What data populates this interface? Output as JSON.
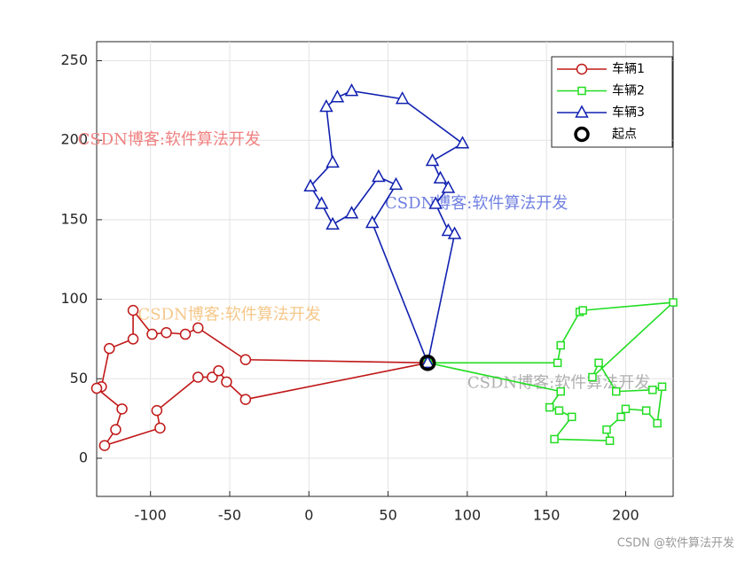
{
  "chart_data": {
    "type": "line",
    "xlim": [
      -134,
      230
    ],
    "ylim": [
      -24,
      262
    ],
    "xticks": [
      -100,
      -50,
      0,
      50,
      100,
      150,
      200
    ],
    "yticks": [
      0,
      50,
      100,
      150,
      200,
      250
    ],
    "grid": true,
    "legend": "upper right",
    "series": [
      {
        "name": "车辆1",
        "color": "#c01818",
        "marker": "circle",
        "x": [
          75,
          -40,
          -70,
          -78,
          -90,
          -99,
          -111,
          -111,
          -126,
          -131,
          -134,
          -118,
          -122,
          -129,
          -94,
          -96,
          -70,
          -61,
          -57,
          -52,
          -40,
          75
        ],
        "y": [
          60,
          62,
          82,
          78,
          79,
          78,
          93,
          75,
          69,
          45,
          44,
          31,
          18,
          8,
          19,
          30,
          51,
          51,
          55,
          48,
          37,
          60
        ]
      },
      {
        "name": "车辆2",
        "color": "#22dd22",
        "marker": "square",
        "x": [
          75,
          157,
          159,
          171,
          173,
          230,
          179,
          183,
          194,
          217,
          223,
          220,
          213,
          200,
          197,
          188,
          190,
          155,
          166,
          158,
          152,
          159,
          75
        ],
        "y": [
          60,
          60,
          71,
          92,
          93,
          98,
          51,
          60,
          42,
          43,
          45,
          22,
          30,
          31,
          26,
          18,
          11,
          12,
          26,
          30,
          32,
          42,
          60
        ]
      },
      {
        "name": "车辆3",
        "color": "#1020b0",
        "marker": "triangle",
        "x": [
          75,
          40,
          55,
          44,
          27,
          15,
          8,
          1,
          15,
          11,
          18,
          27,
          59,
          97,
          78,
          83,
          88,
          80,
          88,
          92,
          75
        ],
        "y": [
          60,
          148,
          172,
          177,
          154,
          147,
          160,
          171,
          186,
          221,
          227,
          231,
          226,
          198,
          187,
          176,
          170,
          160,
          143,
          141,
          60
        ]
      }
    ],
    "start": {
      "name": "起点",
      "x": 75,
      "y": 60,
      "color": "#000000"
    },
    "watermarks": [
      {
        "text": "CSDN博客:软件算法开发",
        "x": -146,
        "y": 200,
        "color": "#f08080"
      },
      {
        "text": "CSDN博客:软件算法开发",
        "x": -108,
        "y": 90,
        "color": "#f5c88a"
      },
      {
        "text": "CSDN博客:软件算法开发",
        "x": 48,
        "y": 160,
        "color": "#7080e0"
      },
      {
        "text": "CSDN博客:软件算法开发",
        "x": 100,
        "y": 47,
        "color": "#b0b0b0"
      }
    ],
    "footer": "CSDN @软件算法开发"
  }
}
